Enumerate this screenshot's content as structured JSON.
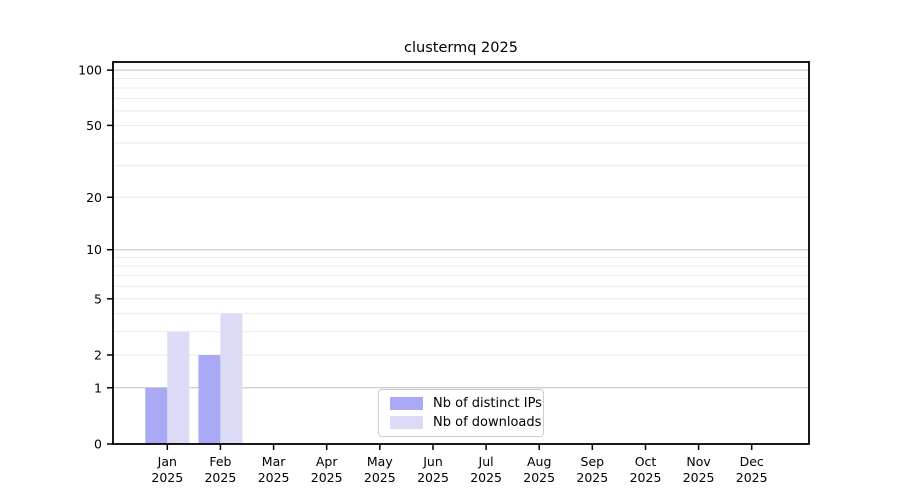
{
  "title": "clustermq 2025",
  "chart_data": {
    "type": "bar",
    "title": "clustermq 2025",
    "categories": [
      "Jan 2025",
      "Feb 2025",
      "Mar 2025",
      "Apr 2025",
      "May 2025",
      "Jun 2025",
      "Jul 2025",
      "Aug 2025",
      "Sep 2025",
      "Oct 2025",
      "Nov 2025",
      "Dec 2025"
    ],
    "x_tick_line1": [
      "Jan",
      "Feb",
      "Mar",
      "Apr",
      "May",
      "Jun",
      "Jul",
      "Aug",
      "Sep",
      "Oct",
      "Nov",
      "Dec"
    ],
    "x_tick_line2": [
      "2025",
      "2025",
      "2025",
      "2025",
      "2025",
      "2025",
      "2025",
      "2025",
      "2025",
      "2025",
      "2025",
      "2025"
    ],
    "series": [
      {
        "name": "Nb of distinct IPs",
        "color": "#a9a9f5",
        "values": [
          1,
          2,
          0,
          0,
          0,
          0,
          0,
          0,
          0,
          0,
          0,
          0
        ]
      },
      {
        "name": "Nb of downloads",
        "color": "#dbdbf8",
        "values": [
          3,
          4,
          0,
          0,
          0,
          0,
          0,
          0,
          0,
          0,
          0,
          0
        ]
      }
    ],
    "xlabel": "",
    "ylabel": "",
    "y_axis": {
      "scale": "log1p",
      "tick_labels": [
        0,
        1,
        2,
        5,
        10,
        20,
        50,
        100
      ],
      "major_gridlines": [
        1,
        10,
        100
      ],
      "minor_gridlines": [
        2,
        3,
        4,
        5,
        6,
        7,
        8,
        9,
        20,
        30,
        40,
        50,
        60,
        70,
        80,
        90
      ],
      "min": 0,
      "max": 110.6
    },
    "grid": true,
    "legend_position": "bottom-center-inside"
  },
  "legend": {
    "entries": [
      {
        "label": "Nb of distinct IPs",
        "color": "#a9a9f5"
      },
      {
        "label": "Nb of downloads",
        "color": "#dbdbf8"
      }
    ]
  },
  "colors": {
    "background": "#ffffff",
    "spine": "#000000",
    "grid_major": "#bdbdbd",
    "grid_minor": "#e9e9e9",
    "tick_text": "#000000",
    "title_text": "#000000",
    "legend_border": "#cccccc"
  }
}
